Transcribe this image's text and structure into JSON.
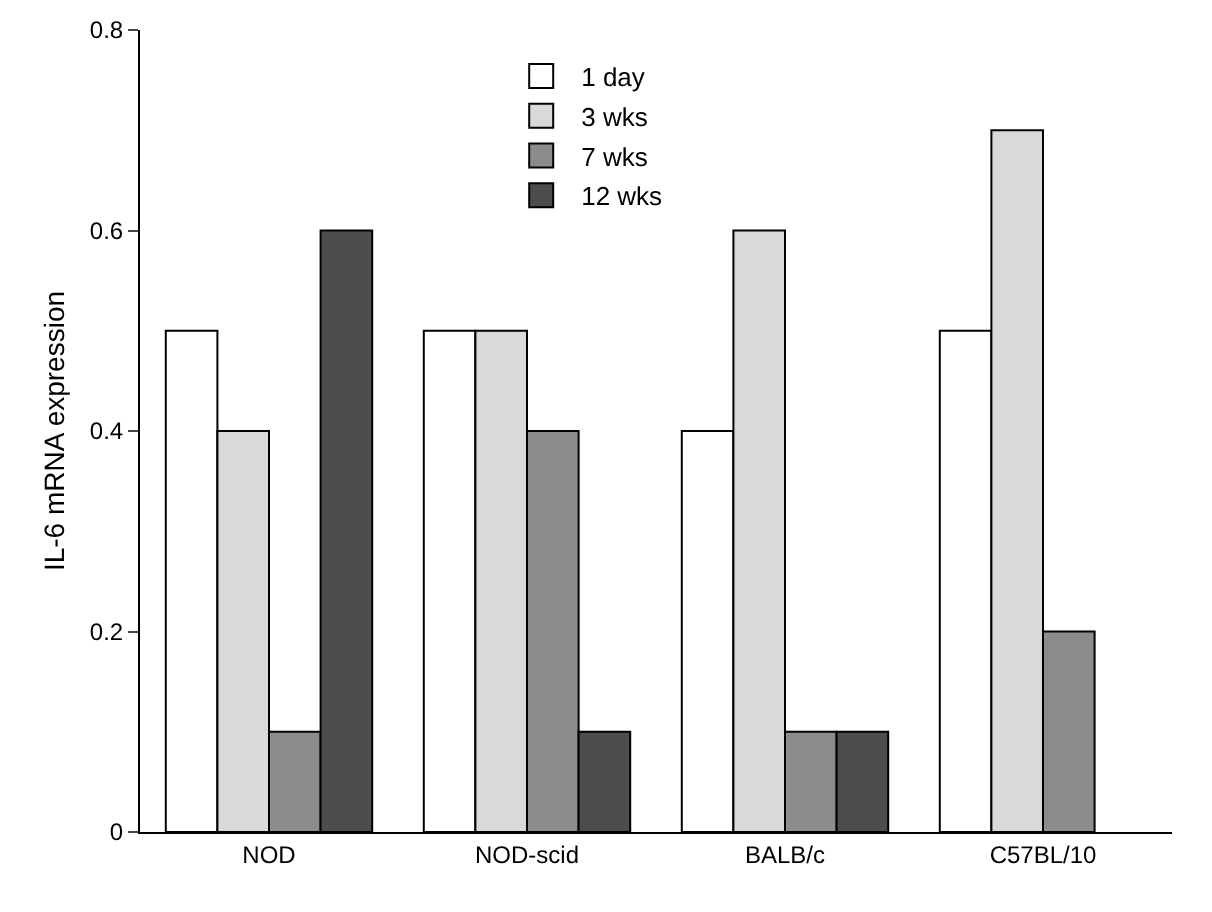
{
  "chart_data": {
    "type": "bar",
    "ylabel": "IL-6 mRNA expression",
    "categories": [
      "NOD",
      "NOD-scid",
      "BALB/c",
      "C57BL/10"
    ],
    "series": [
      {
        "name": "1 day",
        "color": "#ffffff",
        "values": [
          0.5,
          0.5,
          0.4,
          0.5
        ]
      },
      {
        "name": "3 wks",
        "color": "#d9d9d9",
        "values": [
          0.4,
          0.5,
          0.6,
          0.7
        ]
      },
      {
        "name": "7 wks",
        "color": "#8c8c8c",
        "values": [
          0.1,
          0.4,
          0.1,
          0.2
        ]
      },
      {
        "name": "12 wks",
        "color": "#4d4d4d",
        "values": [
          0.6,
          0.1,
          0.1,
          null
        ]
      }
    ],
    "ylim": [
      0,
      0.8
    ],
    "yticks": [
      0,
      {
        "value": 0.2,
        "label": "0.2"
      },
      {
        "value": 0.4,
        "label": "0.4"
      },
      {
        "value": 0.6,
        "label": "0.6"
      },
      {
        "value": 0.8,
        "label": "0.8"
      }
    ],
    "grid": false,
    "legend": "top"
  }
}
